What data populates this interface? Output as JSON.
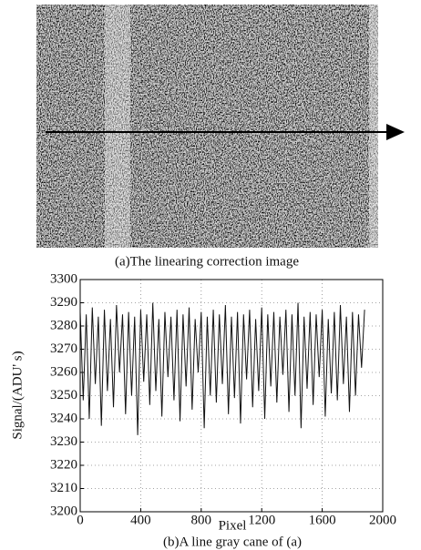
{
  "figure_a": {
    "caption": "(a)The linearing correction image"
  },
  "chart_data": {
    "type": "line",
    "caption": "(b)A line gray cane of (a)",
    "x_label": "Pixel",
    "y_label": "Signal/(ADU' s)",
    "x": [
      0,
      20,
      40,
      60,
      80,
      100,
      120,
      140,
      160,
      180,
      200,
      220,
      240,
      260,
      280,
      300,
      320,
      340,
      360,
      380,
      400,
      420,
      440,
      460,
      480,
      500,
      520,
      540,
      560,
      580,
      600,
      620,
      640,
      660,
      680,
      700,
      720,
      740,
      760,
      780,
      800,
      820,
      840,
      860,
      880,
      900,
      920,
      940,
      960,
      980,
      1000,
      1020,
      1040,
      1060,
      1080,
      1100,
      1120,
      1140,
      1160,
      1180,
      1200,
      1220,
      1240,
      1260,
      1280,
      1300,
      1320,
      1340,
      1360,
      1380,
      1400,
      1420,
      1440,
      1460,
      1480,
      1500,
      1520,
      1540,
      1560,
      1580,
      1600,
      1620,
      1640,
      1660,
      1680,
      1700,
      1720,
      1740,
      1760,
      1780,
      1800,
      1820,
      1840,
      1860,
      1880
    ],
    "series": [
      {
        "color": "#111111",
        "values": [
          3286,
          3248,
          3285,
          3240,
          3288,
          3255,
          3284,
          3237,
          3287,
          3252,
          3283,
          3245,
          3289,
          3260,
          3285,
          3242,
          3286,
          3250,
          3284,
          3233,
          3287,
          3256,
          3285,
          3246,
          3290,
          3252,
          3283,
          3241,
          3286,
          3258,
          3284,
          3248,
          3287,
          3239,
          3285,
          3254,
          3288,
          3244,
          3283,
          3260,
          3286,
          3236,
          3284,
          3250,
          3287,
          3247,
          3285,
          3255,
          3289,
          3242,
          3284,
          3249,
          3286,
          3238,
          3285,
          3257,
          3287,
          3245,
          3283,
          3252,
          3288,
          3240,
          3285,
          3254,
          3286,
          3247,
          3284,
          3259,
          3287,
          3243,
          3285,
          3250,
          3290,
          3236,
          3284,
          3253,
          3286,
          3246,
          3285,
          3258,
          3287,
          3241,
          3283,
          3251,
          3286,
          3248,
          3289,
          3255,
          3284,
          3243,
          3286,
          3250,
          3285,
          3262,
          3287
        ]
      }
    ],
    "xlim": [
      0,
      2000
    ],
    "xticks": [
      0,
      400,
      800,
      1200,
      1600,
      2000
    ],
    "ylim": [
      3200,
      3300
    ],
    "yticks": [
      3200,
      3210,
      3220,
      3230,
      3240,
      3250,
      3260,
      3270,
      3280,
      3290,
      3300
    ],
    "grid": true
  }
}
